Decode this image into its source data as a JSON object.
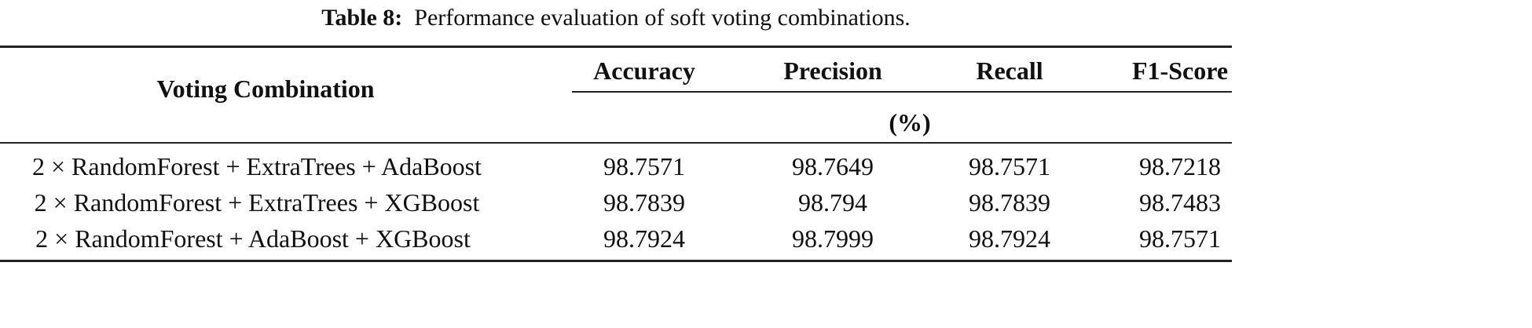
{
  "caption": {
    "label": "Table 8:",
    "text": "Performance evaluation of soft voting combinations."
  },
  "table": {
    "headers": {
      "combination": "Voting Combination",
      "metrics": [
        "Accuracy",
        "Precision",
        "Recall",
        "F1-Score"
      ],
      "unit": "(%)"
    },
    "rows": [
      {
        "combination": "2 × RandomForest + ExtraTrees + AdaBoost",
        "values": [
          "98.7571",
          "98.7649",
          "98.7571",
          "98.7218"
        ]
      },
      {
        "combination": "2 × RandomForest + ExtraTrees + XGBoost",
        "values": [
          "98.7839",
          "98.794",
          "98.7839",
          "98.7483"
        ]
      },
      {
        "combination": "2 × RandomForest + AdaBoost + XGBoost",
        "values": [
          "98.7924",
          "98.7999",
          "98.7924",
          "98.7571"
        ]
      }
    ]
  }
}
